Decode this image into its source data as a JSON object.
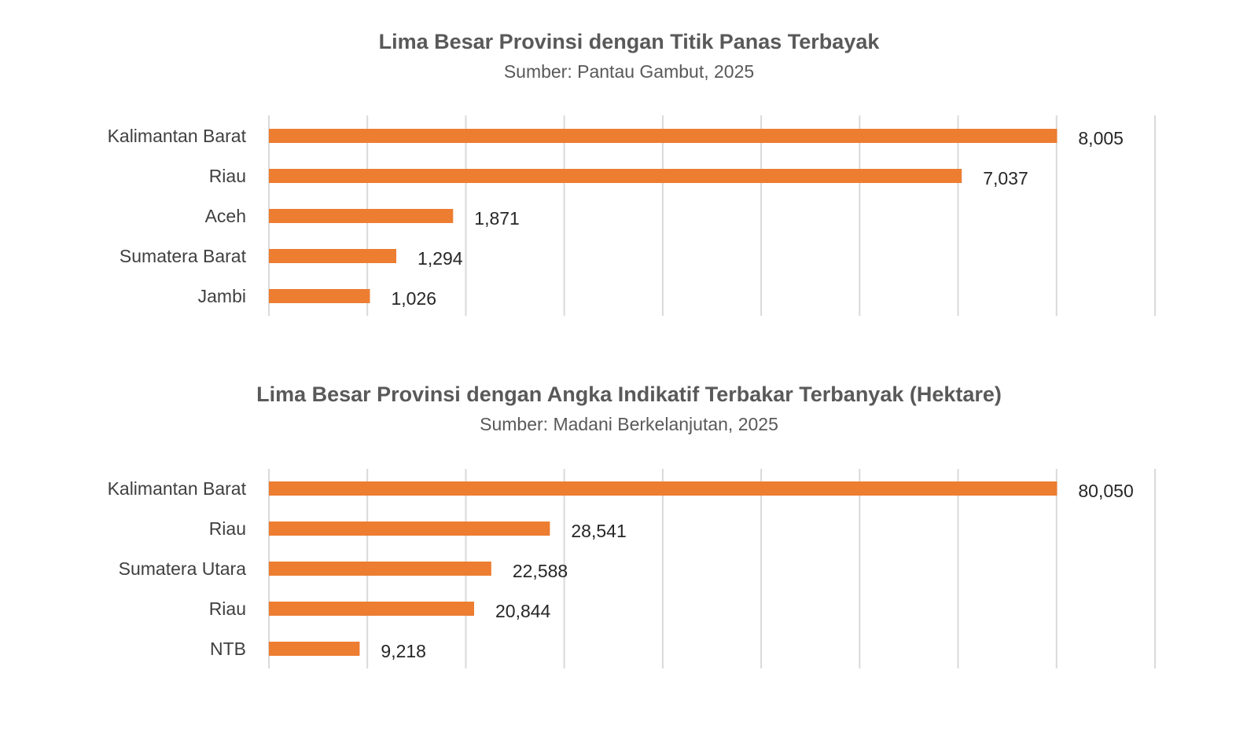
{
  "chart_data": [
    {
      "type": "bar",
      "orientation": "horizontal",
      "title": "Lima Besar Provinsi dengan Titik Panas Terbayak",
      "subtitle": "Sumber: Pantau Gambut, 2025",
      "categories": [
        "Kalimantan Barat",
        "Riau",
        "Aceh",
        "Sumatera Barat",
        "Jambi"
      ],
      "values": [
        8005,
        7037,
        1871,
        1294,
        1026
      ],
      "value_labels": [
        "8,005",
        "7,037",
        "1,871",
        "1,294",
        "1,026"
      ],
      "xlim": [
        0,
        9000
      ],
      "grid_step": 1000,
      "grid": true,
      "xlabel": "",
      "ylabel": "",
      "color": "#ED7D31"
    },
    {
      "type": "bar",
      "orientation": "horizontal",
      "title": "Lima Besar Provinsi dengan Angka Indikatif Terbakar Terbanyak (Hektare)",
      "subtitle": "Sumber: Madani Berkelanjutan, 2025",
      "categories": [
        "Kalimantan Barat",
        "Riau",
        "Sumatera Utara",
        "Riau",
        "NTB"
      ],
      "values": [
        80050,
        28541,
        22588,
        20844,
        9218
      ],
      "value_labels": [
        "80,050",
        "28,541",
        "22,588",
        "20,844",
        "9,218"
      ],
      "xlim": [
        0,
        90000
      ],
      "grid_step": 10000,
      "grid": true,
      "xlabel": "",
      "ylabel": "",
      "color": "#ED7D31"
    }
  ]
}
